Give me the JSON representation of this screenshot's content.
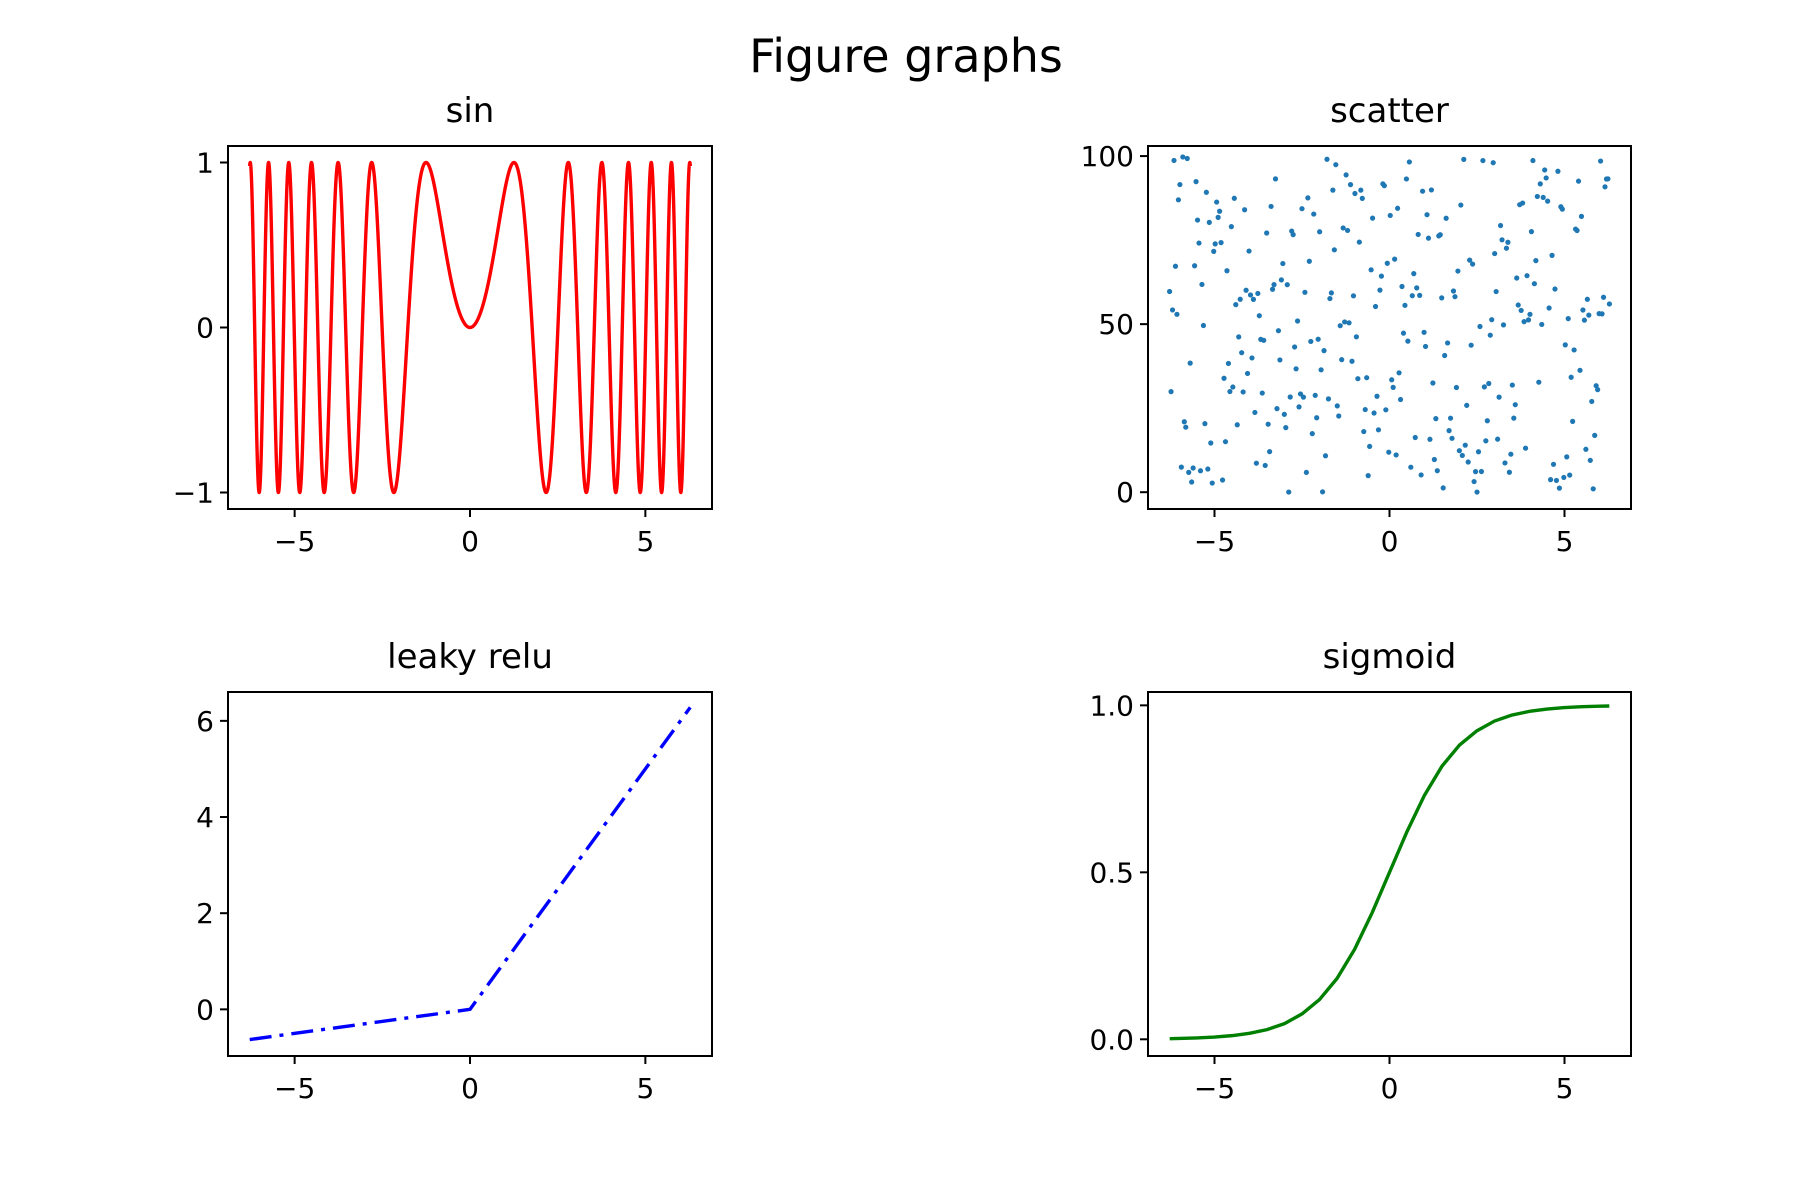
{
  "figure": {
    "suptitle": "Figure graphs",
    "background": "#ffffff"
  },
  "chart_data": [
    {
      "id": "sin",
      "type": "line",
      "title": "sin",
      "xlabel": "",
      "ylabel": "",
      "xlim": [
        -6.9,
        6.9
      ],
      "ylim": [
        -1.1,
        1.1
      ],
      "xticks": [
        -5,
        0,
        5
      ],
      "xtick_labels": [
        "−5",
        "0",
        "5"
      ],
      "yticks": [
        -1,
        0,
        1
      ],
      "ytick_labels": [
        "−1",
        "0",
        "1"
      ],
      "grid": false,
      "legend": "none",
      "series": [
        {
          "function": "sin(x^2)",
          "color": "#ff0000",
          "linestyle": "solid",
          "x": [
            -6.28,
            -6.2,
            -6.1,
            -6.0,
            -5.9,
            -5.8,
            -5.7,
            -5.6,
            -5.5,
            -5.4,
            -5.3,
            -5.2,
            -5.1,
            -5.0,
            -4.9,
            -4.8,
            -4.7,
            -4.6,
            -4.5,
            -4.4,
            -4.3,
            -4.2,
            -4.1,
            -4.0,
            -3.9,
            -3.8,
            -3.7,
            -3.6,
            -3.5,
            -3.4,
            -3.3,
            -3.2,
            -3.1,
            -3.0,
            -2.9,
            -2.8,
            -2.7,
            -2.6,
            -2.5,
            -2.4,
            -2.3,
            -2.2,
            -2.1,
            -2.0,
            -1.9,
            -1.8,
            -1.7,
            -1.6,
            -1.5,
            -1.4,
            -1.3,
            -1.2,
            -1.1,
            -1.0,
            -0.9,
            -0.8,
            -0.7,
            -0.6,
            -0.5,
            -0.4,
            -0.3,
            -0.2,
            -0.1,
            0.0,
            0.1,
            0.2,
            0.3,
            0.4,
            0.5,
            0.6,
            0.7,
            0.8,
            0.9,
            1.0,
            1.1,
            1.2,
            1.3,
            1.4,
            1.5,
            1.6,
            1.7,
            1.8,
            1.9,
            2.0,
            2.1,
            2.2,
            2.3,
            2.4,
            2.5,
            2.6,
            2.7,
            2.8,
            2.9,
            3.0,
            3.1,
            3.2,
            3.3,
            3.4,
            3.5,
            3.6,
            3.7,
            3.8,
            3.9,
            4.0,
            4.1,
            4.2,
            4.3,
            4.4,
            4.5,
            4.6,
            4.7,
            4.8,
            4.9,
            5.0,
            5.1,
            5.2,
            5.3,
            5.4,
            5.5,
            5.6,
            5.7,
            5.8,
            5.9,
            6.0,
            6.1,
            6.2,
            6.28
          ]
        }
      ]
    },
    {
      "id": "scatter",
      "type": "scatter",
      "title": "scatter",
      "xlabel": "",
      "ylabel": "",
      "xlim": [
        -6.9,
        6.9
      ],
      "ylim": [
        -5,
        103
      ],
      "xticks": [
        -5,
        0,
        5
      ],
      "xtick_labels": [
        "−5",
        "0",
        "5"
      ],
      "yticks": [
        0,
        50,
        100
      ],
      "ytick_labels": [
        "0",
        "50",
        "100"
      ],
      "grid": false,
      "legend": "none",
      "series": [
        {
          "color": "#1f77b4",
          "marker": "dot",
          "note_values": "random y in [0, 100] for x evenly spaced in [-2π, 2π]; 300 points",
          "count": 300
        }
      ]
    },
    {
      "id": "leaky-relu",
      "type": "line",
      "title": "leaky relu",
      "xlabel": "",
      "ylabel": "",
      "xlim": [
        -6.9,
        6.9
      ],
      "ylim": [
        -0.97,
        6.6
      ],
      "xticks": [
        -5,
        0,
        5
      ],
      "xtick_labels": [
        "−5",
        "0",
        "5"
      ],
      "yticks": [
        0,
        2,
        4,
        6
      ],
      "ytick_labels": [
        "0",
        "2",
        "4",
        "6"
      ],
      "grid": false,
      "legend": "none",
      "series": [
        {
          "color": "#0000ff",
          "linestyle": "dashdot",
          "x": [
            -6.28,
            0,
            6.28
          ],
          "y": [
            -0.628,
            0,
            6.28
          ]
        }
      ]
    },
    {
      "id": "sigmoid",
      "type": "line",
      "title": "sigmoid",
      "xlabel": "",
      "ylabel": "",
      "xlim": [
        -6.9,
        6.9
      ],
      "ylim": [
        -0.05,
        1.04
      ],
      "xticks": [
        -5,
        0,
        5
      ],
      "xtick_labels": [
        "−5",
        "0",
        "5"
      ],
      "yticks": [
        0.0,
        0.5,
        1.0
      ],
      "ytick_labels": [
        "0.0",
        "0.5",
        "1.0"
      ],
      "grid": false,
      "legend": "none",
      "series": [
        {
          "color": "#008000",
          "linestyle": "solid",
          "x": [
            -6.28,
            -6.0,
            -5.5,
            -5.0,
            -4.5,
            -4.0,
            -3.5,
            -3.0,
            -2.5,
            -2.0,
            -1.5,
            -1.0,
            -0.5,
            0.0,
            0.5,
            1.0,
            1.5,
            2.0,
            2.5,
            3.0,
            3.5,
            4.0,
            4.5,
            5.0,
            5.5,
            6.0,
            6.28
          ],
          "y": [
            0.0019,
            0.0025,
            0.0041,
            0.0067,
            0.011,
            0.018,
            0.029,
            0.047,
            0.076,
            0.119,
            0.182,
            0.269,
            0.378,
            0.5,
            0.622,
            0.731,
            0.818,
            0.881,
            0.924,
            0.953,
            0.971,
            0.982,
            0.989,
            0.9933,
            0.9959,
            0.9975,
            0.9981
          ]
        }
      ]
    }
  ]
}
